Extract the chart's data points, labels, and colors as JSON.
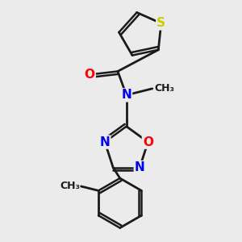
{
  "background_color": "#ebebeb",
  "bond_color": "#1a1a1a",
  "bond_width": 2.0,
  "atom_colors": {
    "S": "#cccc00",
    "O": "#ff0000",
    "N": "#0000ee",
    "C": "#1a1a1a"
  },
  "font_size": 11,
  "fig_width": 3.0,
  "fig_height": 3.0,
  "dpi": 100
}
